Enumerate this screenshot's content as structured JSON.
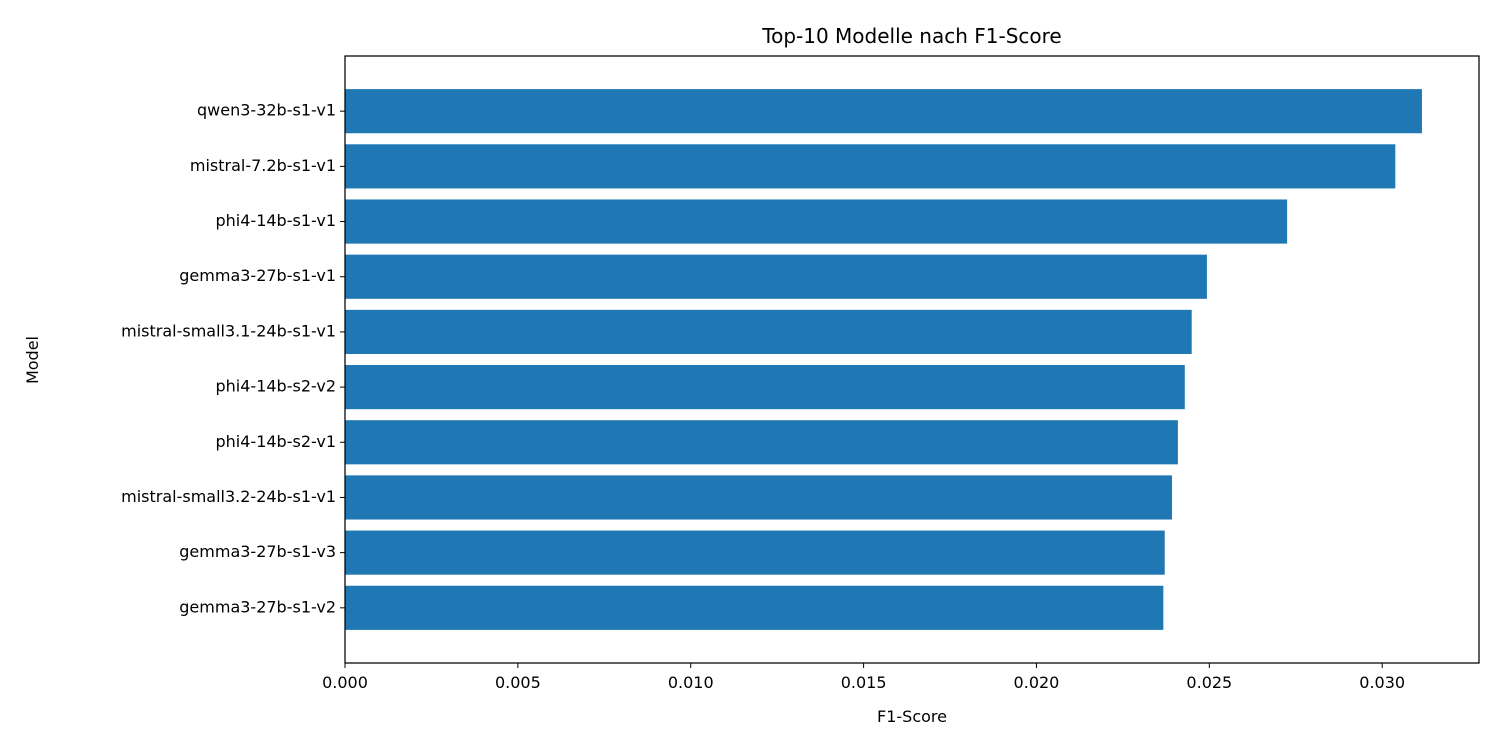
{
  "chart_data": {
    "type": "bar",
    "orientation": "horizontal",
    "title": "Top-10 Modelle nach F1-Score",
    "xlabel": "F1-Score",
    "ylabel": "Model",
    "categories": [
      "qwen3-32b-s1-v1",
      "mistral-7.2b-s1-v1",
      "phi4-14b-s1-v1",
      "gemma3-27b-s1-v1",
      "mistral-small3.1-24b-s1-v1",
      "phi4-14b-s2-v2",
      "phi4-14b-s2-v1",
      "mistral-small3.2-24b-s1-v1",
      "gemma3-27b-s1-v3",
      "gemma3-27b-s1-v2"
    ],
    "values": [
      0.03115,
      0.03038,
      0.02725,
      0.02493,
      0.02449,
      0.02429,
      0.02409,
      0.02392,
      0.02371,
      0.02367
    ],
    "xlim": [
      0,
      0.0328
    ],
    "xticks": [
      0.0,
      0.005,
      0.01,
      0.015,
      0.02,
      0.025,
      0.03
    ],
    "xtick_labels": [
      "0.000",
      "0.005",
      "0.010",
      "0.015",
      "0.020",
      "0.025",
      "0.030"
    ],
    "grid": false,
    "bar_color": "#1f77b4"
  }
}
